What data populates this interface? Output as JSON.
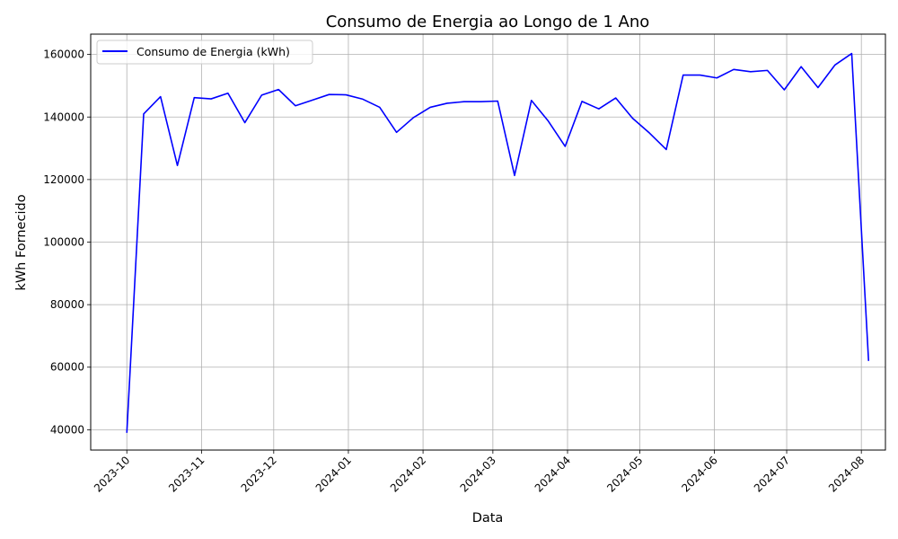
{
  "chart_data": {
    "type": "line",
    "title": "Consumo de Energia ao Longo de 1 Ano",
    "xlabel": "Data",
    "ylabel": "kWh Fornecido",
    "legend": {
      "placement": "top-left",
      "entries": [
        "Consumo de Energia (kWh)"
      ]
    },
    "grid": true,
    "color": "#0000ff",
    "xlim": [
      "2023-09-16",
      "2024-08-11"
    ],
    "ylim": [
      33500,
      166500
    ],
    "x_ticks": [
      "2023-10",
      "2023-11",
      "2023-12",
      "2024-01",
      "2024-02",
      "2024-03",
      "2024-04",
      "2024-05",
      "2024-06",
      "2024-07",
      "2024-08"
    ],
    "y_ticks": [
      40000,
      60000,
      80000,
      100000,
      120000,
      140000,
      160000
    ],
    "series": [
      {
        "name": "Consumo de Energia (kWh)",
        "x": [
          "2023-10-01",
          "2023-10-08",
          "2023-10-15",
          "2023-10-22",
          "2023-10-29",
          "2023-11-05",
          "2023-11-12",
          "2023-11-19",
          "2023-11-26",
          "2023-12-03",
          "2023-12-10",
          "2023-12-17",
          "2023-12-24",
          "2023-12-31",
          "2024-01-07",
          "2024-01-14",
          "2024-01-21",
          "2024-01-28",
          "2024-02-04",
          "2024-02-11",
          "2024-02-18",
          "2024-02-25",
          "2024-03-03",
          "2024-03-10",
          "2024-03-17",
          "2024-03-24",
          "2024-03-31",
          "2024-04-07",
          "2024-04-14",
          "2024-04-21",
          "2024-04-28",
          "2024-05-05",
          "2024-05-12",
          "2024-05-19",
          "2024-05-26",
          "2024-06-02",
          "2024-06-09",
          "2024-06-16",
          "2024-06-23",
          "2024-06-30",
          "2024-07-07",
          "2024-07-14",
          "2024-07-21",
          "2024-07-28",
          "2024-08-04"
        ],
        "values": [
          39000,
          141000,
          146500,
          124500,
          146200,
          145800,
          147600,
          138200,
          147000,
          148800,
          143600,
          145400,
          147200,
          147100,
          145700,
          143100,
          135100,
          139800,
          143100,
          144400,
          144900,
          144900,
          145100,
          121300,
          145300,
          138700,
          130600,
          145000,
          142600,
          146100,
          139600,
          134900,
          129600,
          153400,
          153400,
          152500,
          155200,
          154500,
          154900,
          148700,
          156100,
          149400,
          156600,
          160300,
          62000
        ]
      }
    ]
  }
}
